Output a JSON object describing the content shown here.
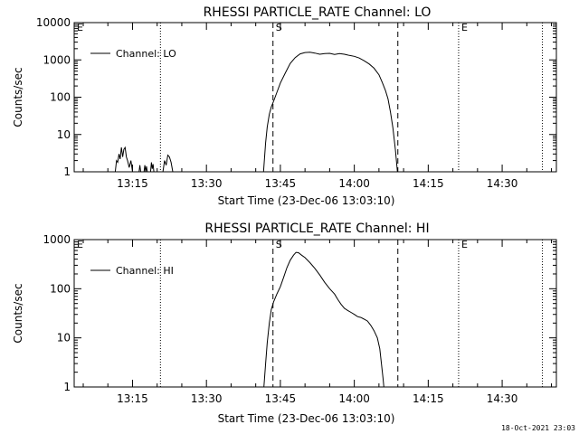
{
  "footer_timestamp": "18-Oct-2021 23:03",
  "colors": {
    "background": "#ffffff",
    "foreground": "#000000"
  },
  "chart_data": [
    {
      "type": "line",
      "title": "RHESSI PARTICLE_RATE Channel: LO",
      "xlabel": "Start Time (23-Dec-06 13:03:10)",
      "ylabel": "Counts/sec",
      "yscale": "log",
      "ylim": [
        1,
        10000
      ],
      "xlim": [
        "13:03:10",
        "14:41:00"
      ],
      "xticks": [
        "13:15",
        "13:30",
        "13:45",
        "14:00",
        "14:15",
        "14:30"
      ],
      "yticks": [
        "1",
        "10",
        "100",
        "1000",
        "10000"
      ],
      "legend": {
        "entries": [
          "Channel: LO"
        ],
        "position": "top-left"
      },
      "markers": [
        {
          "label": "E",
          "time": "13:03:10",
          "style": "dotted"
        },
        {
          "label": "",
          "time": "13:20:40",
          "style": "dotted"
        },
        {
          "label": "S",
          "time": "13:43:30",
          "style": "dashed"
        },
        {
          "label": "",
          "time": "14:08:50",
          "style": "dashed"
        },
        {
          "label": "E",
          "time": "14:21:10",
          "style": "dotted"
        },
        {
          "label": "",
          "time": "14:38:10",
          "style": "dotted"
        }
      ],
      "series": [
        {
          "name": "Channel: LO",
          "segments": [
            [
              [
                "13:11:30",
                1
              ],
              [
                "13:11:45",
                2
              ],
              [
                "13:12:00",
                1.8
              ],
              [
                "13:12:15",
                3
              ],
              [
                "13:12:30",
                2.2
              ],
              [
                "13:12:45",
                4.5
              ],
              [
                "13:13:00",
                2.5
              ],
              [
                "13:13:15",
                4
              ],
              [
                "13:13:30",
                4.5
              ],
              [
                "13:13:45",
                2.5
              ],
              [
                "13:14:00",
                2
              ],
              [
                "13:14:20",
                1.3
              ],
              [
                "13:14:40",
                2
              ],
              [
                "13:15:00",
                1
              ]
            ],
            [
              [
                "13:16:20",
                1
              ],
              [
                "13:16:30",
                1.5
              ],
              [
                "13:16:40",
                1
              ]
            ],
            [
              [
                "13:17:20",
                1
              ],
              [
                "13:17:30",
                1.5
              ],
              [
                "13:17:40",
                1
              ],
              [
                "13:17:50",
                1.4
              ],
              [
                "13:18:00",
                1
              ]
            ],
            [
              [
                "13:18:40",
                1
              ],
              [
                "13:18:50",
                1.8
              ],
              [
                "13:19:00",
                1.2
              ],
              [
                "13:19:10",
                1.6
              ],
              [
                "13:19:20",
                1
              ]
            ],
            [
              [
                "13:21:10",
                1
              ],
              [
                "13:21:30",
                2
              ],
              [
                "13:21:50",
                1.5
              ],
              [
                "13:22:10",
                2.8
              ],
              [
                "13:22:30",
                2.5
              ],
              [
                "13:22:50",
                1.8
              ],
              [
                "13:23:10",
                1
              ]
            ],
            [
              [
                "13:41:35",
                1
              ],
              [
                "13:42:00",
                6
              ],
              [
                "13:42:20",
                16
              ],
              [
                "13:42:45",
                35
              ],
              [
                "13:43:10",
                55
              ],
              [
                "13:43:40",
                80
              ],
              [
                "13:44:20",
                140
              ],
              [
                "13:45:00",
                240
              ],
              [
                "13:46:00",
                450
              ],
              [
                "13:47:00",
                800
              ],
              [
                "13:48:00",
                1150
              ],
              [
                "13:49:00",
                1450
              ],
              [
                "13:50:00",
                1580
              ],
              [
                "13:51:00",
                1600
              ],
              [
                "13:52:00",
                1520
              ],
              [
                "13:53:00",
                1420
              ],
              [
                "13:54:00",
                1480
              ],
              [
                "13:55:00",
                1500
              ],
              [
                "13:56:00",
                1400
              ],
              [
                "13:57:00",
                1480
              ],
              [
                "13:58:00",
                1420
              ],
              [
                "13:59:00",
                1320
              ],
              [
                "14:00:00",
                1250
              ],
              [
                "14:01:00",
                1120
              ],
              [
                "14:02:00",
                950
              ],
              [
                "14:03:00",
                780
              ],
              [
                "14:04:00",
                600
              ],
              [
                "14:05:00",
                400
              ],
              [
                "14:05:40",
                250
              ],
              [
                "14:06:20",
                150
              ],
              [
                "14:06:50",
                90
              ],
              [
                "14:07:20",
                40
              ],
              [
                "14:07:50",
                15
              ],
              [
                "14:08:20",
                4
              ],
              [
                "14:08:45",
                1
              ]
            ]
          ]
        }
      ]
    },
    {
      "type": "line",
      "title": "RHESSI PARTICLE_RATE Channel: HI",
      "xlabel": "Start Time (23-Dec-06 13:03:10)",
      "ylabel": "Counts/sec",
      "yscale": "log",
      "ylim": [
        1,
        1000
      ],
      "xlim": [
        "13:03:10",
        "14:41:00"
      ],
      "xticks": [
        "13:15",
        "13:30",
        "13:45",
        "14:00",
        "14:15",
        "14:30"
      ],
      "yticks": [
        "1",
        "10",
        "100",
        "1000"
      ],
      "legend": {
        "entries": [
          "Channel: HI"
        ],
        "position": "top-left"
      },
      "markers": [
        {
          "label": "E",
          "time": "13:03:10",
          "style": "dotted"
        },
        {
          "label": "",
          "time": "13:20:40",
          "style": "dotted"
        },
        {
          "label": "S",
          "time": "13:43:30",
          "style": "dashed"
        },
        {
          "label": "",
          "time": "14:08:50",
          "style": "dashed"
        },
        {
          "label": "E",
          "time": "14:21:10",
          "style": "dotted"
        },
        {
          "label": "",
          "time": "14:38:10",
          "style": "dotted"
        }
      ],
      "series": [
        {
          "name": "Channel: HI",
          "segments": [
            [
              [
                "13:41:40",
                1
              ],
              [
                "13:42:00",
                3
              ],
              [
                "13:42:20",
                8
              ],
              [
                "13:42:45",
                20
              ],
              [
                "13:43:10",
                38
              ],
              [
                "13:43:40",
                55
              ],
              [
                "13:44:20",
                80
              ],
              [
                "13:45:00",
                110
              ],
              [
                "13:45:40",
                170
              ],
              [
                "13:46:20",
                270
              ],
              [
                "13:47:00",
                380
              ],
              [
                "13:47:40",
                480
              ],
              [
                "13:48:10",
                550
              ],
              [
                "13:48:40",
                540
              ],
              [
                "13:49:20",
                480
              ],
              [
                "13:50:00",
                430
              ],
              [
                "13:51:00",
                340
              ],
              [
                "13:52:00",
                260
              ],
              [
                "13:53:00",
                190
              ],
              [
                "13:54:00",
                135
              ],
              [
                "13:55:00",
                100
              ],
              [
                "13:56:00",
                78
              ],
              [
                "13:56:40",
                60
              ],
              [
                "13:57:20",
                48
              ],
              [
                "13:58:00",
                40
              ],
              [
                "13:58:40",
                36
              ],
              [
                "13:59:20",
                33
              ],
              [
                "14:00:00",
                30
              ],
              [
                "14:00:40",
                27
              ],
              [
                "14:01:20",
                26
              ],
              [
                "14:02:00",
                24
              ],
              [
                "14:02:40",
                22
              ],
              [
                "14:03:20",
                18
              ],
              [
                "14:04:00",
                14
              ],
              [
                "14:04:40",
                10
              ],
              [
                "14:05:10",
                6
              ],
              [
                "14:05:30",
                3
              ],
              [
                "14:05:50",
                1.5
              ],
              [
                "14:06:00",
                1
              ]
            ]
          ]
        }
      ]
    }
  ]
}
